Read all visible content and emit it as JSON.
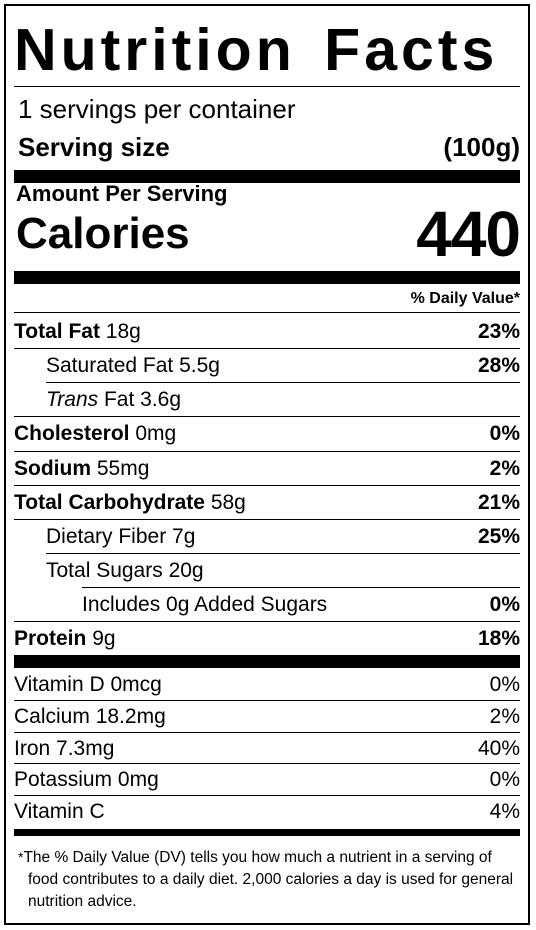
{
  "title": "Nutrition Facts",
  "servings_per_container": "1 servings per container",
  "serving_size": {
    "label": "Serving size",
    "value": "(100g)"
  },
  "amount_per_serving": "Amount Per Serving",
  "calories": {
    "label": "Calories",
    "value": "440"
  },
  "daily_value_header": "% Daily Value*",
  "nutrients": [
    {
      "name": "Total Fat",
      "amount": "18g",
      "dv": "23%"
    },
    {
      "name": "Saturated Fat",
      "amount": "5.5g",
      "dv": "28%"
    },
    {
      "name": "Trans",
      "suffix": "Fat",
      "amount": "3.6g",
      "dv": ""
    },
    {
      "name": "Cholesterol",
      "amount": "0mg",
      "dv": "0%"
    },
    {
      "name": "Sodium",
      "amount": "55mg",
      "dv": "2%"
    },
    {
      "name": "Total Carbohydrate",
      "amount": "58g",
      "dv": "21%"
    },
    {
      "name": "Dietary Fiber",
      "amount": "7g",
      "dv": "25%"
    },
    {
      "name": "Total Sugars",
      "amount": "20g",
      "dv": ""
    },
    {
      "name": "Includes 0g Added Sugars",
      "amount": "",
      "dv": "0%"
    },
    {
      "name": "Protein",
      "amount": "9g",
      "dv": "18%"
    }
  ],
  "vitamins": [
    {
      "name": "Vitamin D",
      "amount": "0mcg",
      "dv": "0%"
    },
    {
      "name": "Calcium",
      "amount": "18.2mg",
      "dv": "2%"
    },
    {
      "name": "Iron",
      "amount": "7.3mg",
      "dv": "40%"
    },
    {
      "name": "Potassium",
      "amount": "0mg",
      "dv": "0%"
    },
    {
      "name": "Vitamin C",
      "amount": "",
      "dv": "4%"
    }
  ],
  "footnote": {
    "star": "*",
    "text": "The % Daily Value (DV) tells you how much a nutrient in a serving of food contributes to a daily diet. 2,000 calories a day is used for general nutrition advice."
  }
}
